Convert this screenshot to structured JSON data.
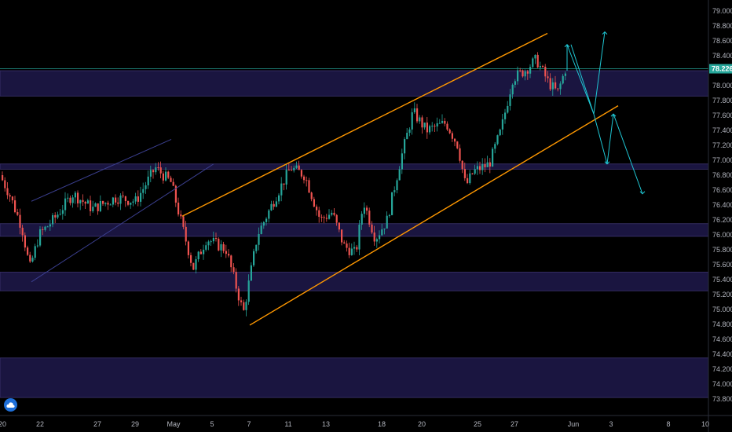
{
  "chart_data": {
    "type": "candlestick",
    "symbol_current_price": "78.226",
    "ylim": [
      73.8,
      79.0
    ],
    "y_ticks": [
      "79.000",
      "78.800",
      "78.600",
      "78.400",
      "78.200",
      "78.000",
      "77.800",
      "77.600",
      "77.400",
      "77.200",
      "77.000",
      "76.800",
      "76.600",
      "76.400",
      "76.200",
      "76.000",
      "75.800",
      "75.600",
      "75.400",
      "75.200",
      "75.000",
      "74.800",
      "74.600",
      "74.400",
      "74.200",
      "74.000",
      "73.800"
    ],
    "x_ticks": [
      "20",
      "22",
      "27",
      "29",
      "May",
      "5",
      "7",
      "11",
      "13",
      "18",
      "20",
      "25",
      "27",
      "Jun",
      "3",
      "8",
      "10"
    ],
    "zones": [
      {
        "y1": 78.2,
        "y2": 77.86
      },
      {
        "y1": 76.95,
        "y2": 76.88
      },
      {
        "y1": 76.15,
        "y2": 75.98
      },
      {
        "y1": 75.5,
        "y2": 75.25
      },
      {
        "y1": 74.35,
        "y2": 73.82
      }
    ],
    "candles": [],
    "colors": {
      "up": "#26a69a",
      "down": "#ef5350",
      "channel": "#ff9800",
      "old_channel": "#3b3f8f",
      "projection": "#1fc7d4",
      "zone": "#1a1540",
      "zone_edge": "#3c3470",
      "price_line": "#26a69a"
    }
  },
  "logo": {
    "icon": "tradingview-cloud-icon"
  }
}
